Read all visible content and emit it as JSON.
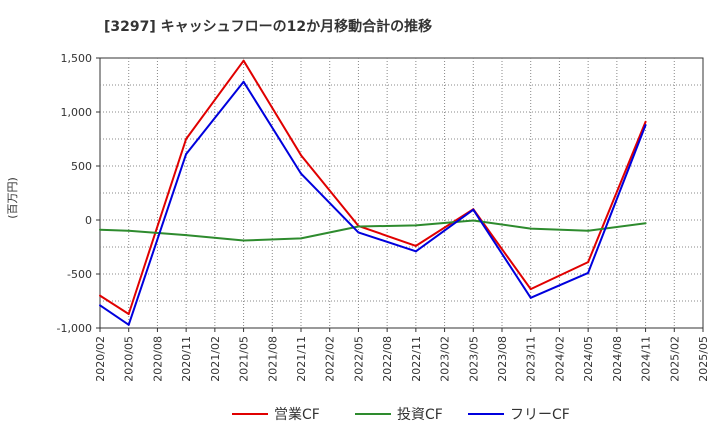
{
  "chart_data": {
    "type": "line",
    "title": "[3297]  キャッシュフローの12か月移動合計の推移",
    "ylabel": "(百万円)",
    "xlabel": "",
    "ylim": [
      -1000,
      1500
    ],
    "y_ticks": [
      1500,
      1000,
      500,
      0,
      -500,
      -1000
    ],
    "y_tick_labels": [
      "1,500",
      "1,000",
      "500",
      "0",
      "-500",
      "-1,000"
    ],
    "categories": [
      "2020/02",
      "2020/05",
      "2020/08",
      "2020/11",
      "2021/02",
      "2021/05",
      "2021/08",
      "2021/11",
      "2022/02",
      "2022/05",
      "2022/08",
      "2022/11",
      "2023/02",
      "2023/05",
      "2023/08",
      "2023/11",
      "2024/02",
      "2024/05",
      "2024/08",
      "2024/11",
      "2025/02",
      "2025/05"
    ],
    "grid": true,
    "legend_position": "bottom",
    "series": [
      {
        "name": "営業CF",
        "color": "#e00000",
        "values": [
          -700,
          -870,
          null,
          750,
          null,
          1475,
          null,
          600,
          null,
          -55,
          null,
          -240,
          null,
          100,
          null,
          -640,
          null,
          -390,
          null,
          910,
          null,
          null
        ]
      },
      {
        "name": "投資CF",
        "color": "#2e8b2e",
        "values": [
          -90,
          -100,
          null,
          -140,
          null,
          -190,
          null,
          -170,
          null,
          -60,
          null,
          -50,
          null,
          -5,
          null,
          -80,
          null,
          -100,
          null,
          -30,
          null,
          null
        ]
      },
      {
        "name": "フリーCF",
        "color": "#0000dd",
        "values": [
          -790,
          -970,
          null,
          610,
          null,
          1280,
          null,
          430,
          null,
          -115,
          null,
          -290,
          null,
          95,
          null,
          -720,
          null,
          -490,
          null,
          880,
          null,
          null
        ]
      }
    ]
  }
}
